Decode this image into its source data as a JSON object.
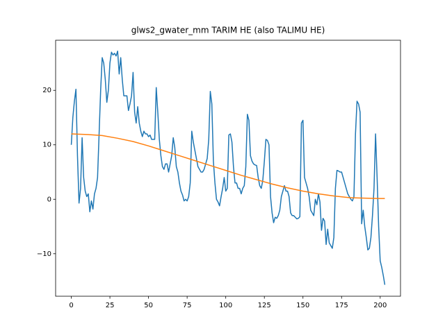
{
  "chart_data": {
    "type": "line",
    "title": "glws2_gwater_mm TARIM HE (also TALIMU HE)",
    "xlim": [
      -10.15,
      213.15
    ],
    "ylim": [
      -17.8,
      29.2
    ],
    "xticks": [
      0,
      25,
      50,
      75,
      100,
      125,
      150,
      175,
      200
    ],
    "yticks": [
      {
        "value": -10,
        "label": "−10"
      },
      0,
      10,
      20
    ],
    "series": [
      {
        "color": "#1f77b4",
        "x": [
          0,
          1,
          2,
          3,
          4,
          5,
          6,
          7,
          8,
          9,
          10,
          11,
          12,
          13,
          14,
          15,
          16,
          17,
          18,
          19,
          20,
          21,
          22,
          23,
          24,
          25,
          26,
          27,
          28,
          29,
          30,
          31,
          32,
          33,
          34,
          35,
          36,
          37,
          38,
          39,
          40,
          41,
          42,
          43,
          44,
          45,
          46,
          47,
          48,
          49,
          50,
          51,
          52,
          53,
          54,
          55,
          56,
          57,
          58,
          59,
          60,
          61,
          62,
          63,
          64,
          65,
          66,
          67,
          68,
          69,
          70,
          71,
          72,
          73,
          74,
          75,
          76,
          77,
          78,
          79,
          80,
          81,
          82,
          83,
          84,
          85,
          86,
          87,
          88,
          89,
          90,
          91,
          92,
          93,
          94,
          95,
          96,
          97,
          98,
          99,
          100,
          101,
          102,
          103,
          104,
          105,
          106,
          107,
          108,
          109,
          110,
          111,
          112,
          113,
          114,
          115,
          116,
          117,
          118,
          119,
          120,
          121,
          122,
          123,
          124,
          125,
          126,
          127,
          128,
          129,
          130,
          131,
          132,
          133,
          134,
          135,
          136,
          137,
          138,
          139,
          140,
          141,
          142,
          143,
          144,
          145,
          146,
          147,
          148,
          149,
          150,
          151,
          152,
          153,
          154,
          155,
          156,
          157,
          158,
          159,
          160,
          161,
          162,
          163,
          164,
          165,
          166,
          167,
          168,
          169,
          170,
          171,
          172,
          173,
          174,
          175,
          176,
          177,
          178,
          179,
          180,
          181,
          182,
          183,
          184,
          185,
          186,
          187,
          188,
          189,
          190,
          191,
          192,
          193,
          194,
          195,
          196,
          197,
          198,
          199,
          200,
          201,
          202,
          203
        ],
        "values": [
          10,
          15,
          18,
          20.2,
          8,
          -0.7,
          2,
          11.3,
          4,
          1.5,
          0.5,
          1,
          -2.3,
          -0.3,
          -1.8,
          1,
          2,
          4,
          12,
          20,
          26,
          25,
          22,
          17.8,
          20,
          25,
          27,
          26.5,
          26.8,
          26.3,
          27.2,
          23,
          26,
          22,
          19,
          19,
          19,
          16.3,
          17.5,
          19,
          23.3,
          16,
          14,
          17,
          14,
          12.5,
          11.5,
          12.5,
          12,
          12,
          11.5,
          11.8,
          11,
          11,
          11,
          20.5,
          16,
          11,
          8,
          6,
          5.5,
          6.5,
          6.5,
          5,
          6.5,
          8,
          11.3,
          9.5,
          6,
          5,
          3,
          1.5,
          0.8,
          -0.3,
          0,
          -0.3,
          0.5,
          3,
          12.5,
          10.5,
          9,
          7.5,
          6,
          5.5,
          5,
          5,
          5.5,
          6.5,
          7.5,
          11,
          19.8,
          17.5,
          7,
          3,
          0,
          -0.5,
          -1.2,
          0.5,
          2,
          4,
          1.5,
          2,
          11.8,
          12,
          10.5,
          6,
          3,
          3,
          2,
          2,
          1,
          2,
          2.5,
          6,
          15.6,
          14.5,
          8,
          7,
          6.5,
          6.3,
          6.2,
          4,
          2.5,
          2,
          3.5,
          7,
          11,
          10.8,
          10,
          0.5,
          -2.5,
          -4.3,
          -3.3,
          -3.5,
          -3,
          -2,
          0.5,
          1.5,
          2.5,
          1.5,
          1.5,
          0.5,
          -2.5,
          -3,
          -3,
          -3.3,
          -3.6,
          -3.5,
          -3.2,
          14,
          14.5,
          4,
          3,
          2,
          0.5,
          -2,
          -2.5,
          -3,
          0,
          -1,
          1,
          -0.5,
          -5.7,
          -3.5,
          -4,
          -8.3,
          -5.5,
          -8,
          -8.5,
          -9,
          -7,
          2,
          5.3,
          5.2,
          5,
          5,
          4,
          3,
          2,
          1,
          0.5,
          0,
          -0.3,
          0.5,
          12,
          18,
          17.5,
          16,
          -4.5,
          -2,
          -5,
          -7,
          -9.3,
          -9,
          -7,
          -3,
          2,
          12,
          4,
          -5,
          -11.3,
          -12.5,
          -14,
          -15.7
        ]
      },
      {
        "color": "#ff7f0e",
        "x": [
          0,
          10,
          20,
          30,
          40,
          50,
          60,
          70,
          80,
          90,
          100,
          110,
          120,
          130,
          140,
          150,
          160,
          170,
          180,
          190,
          200,
          203
        ],
        "values": [
          12,
          11.9,
          11.7,
          11.2,
          10.6,
          9.8,
          8.9,
          8,
          7.1,
          6.2,
          5.3,
          4.4,
          3.6,
          2.8,
          2.1,
          1.5,
          1,
          0.6,
          0.3,
          0.2,
          0.15,
          0.15
        ]
      }
    ]
  }
}
